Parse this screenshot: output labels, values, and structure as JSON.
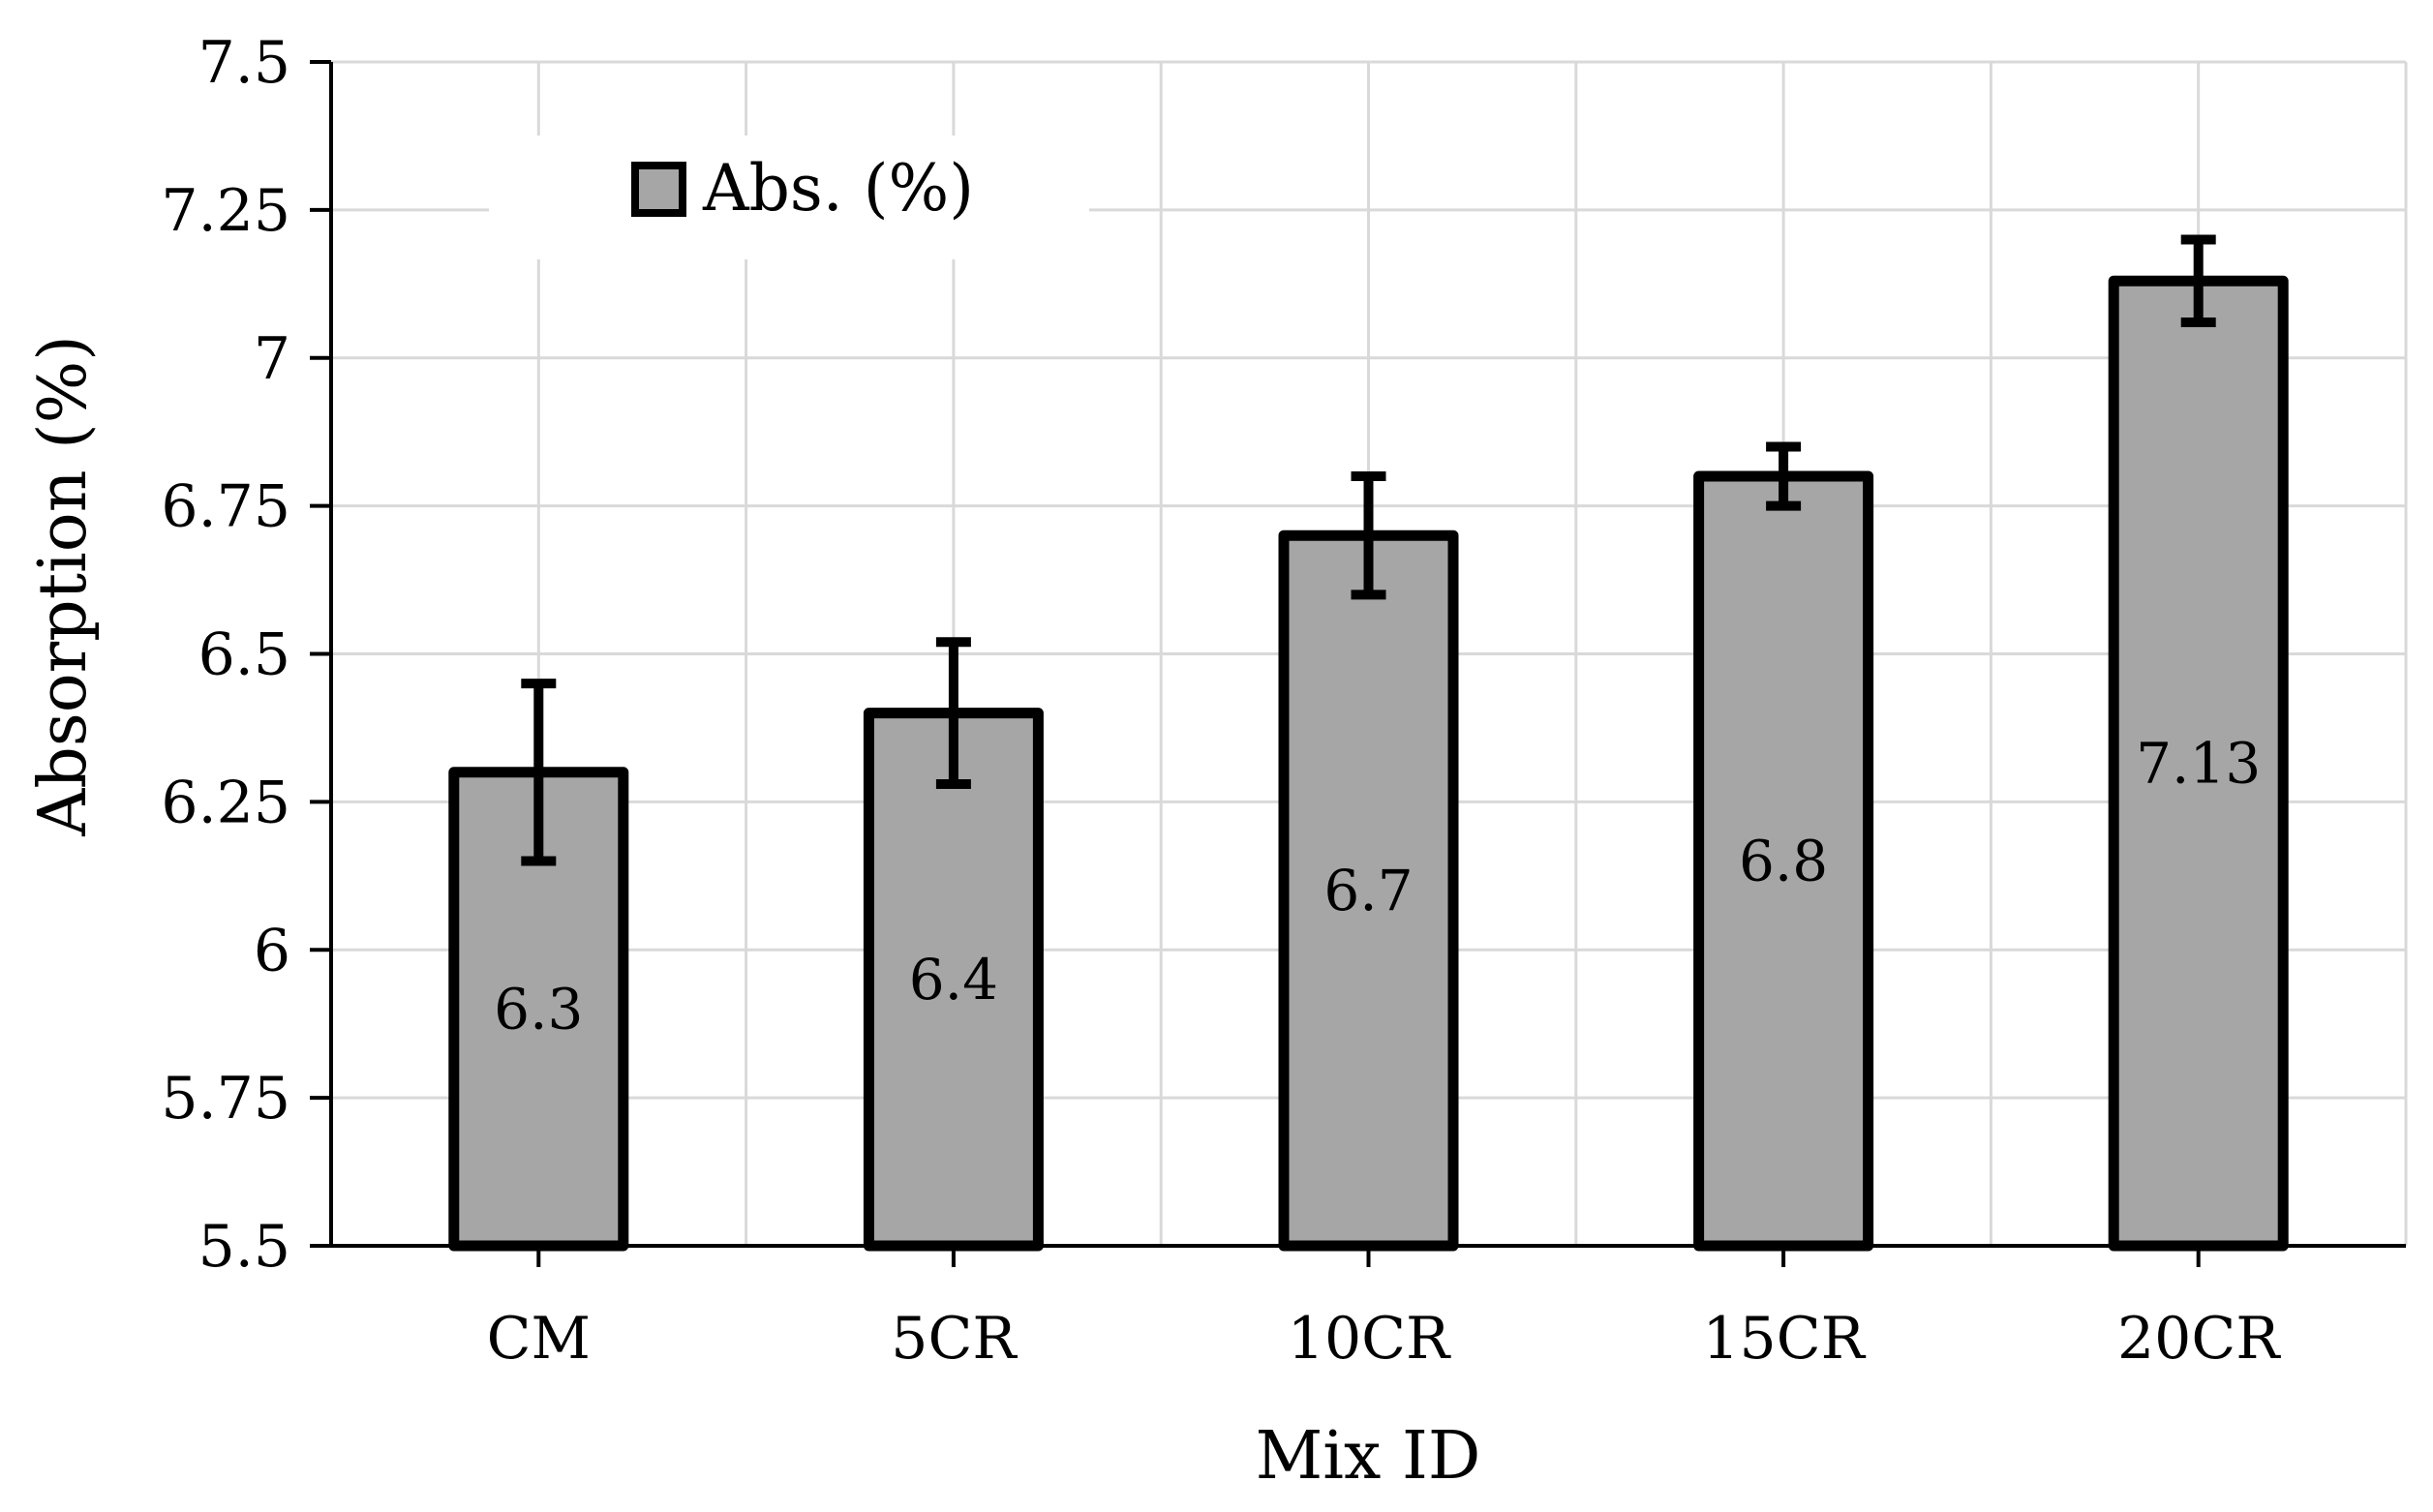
{
  "chart_data": {
    "type": "bar",
    "title": "",
    "xlabel": "Mix ID",
    "ylabel": "Absorption (%)",
    "categories": [
      "CM",
      "5CR",
      "10CR",
      "15CR",
      "20CR"
    ],
    "series": [
      {
        "name": "Abs. (%)",
        "values": [
          6.3,
          6.4,
          6.7,
          6.8,
          7.13
        ],
        "error": [
          0.15,
          0.12,
          0.1,
          0.05,
          0.07
        ],
        "labels": [
          "6.3",
          "6.4",
          "6.7",
          "6.8",
          "7.13"
        ]
      }
    ],
    "ylim": [
      5.5,
      7.5
    ],
    "yticks": [
      5.5,
      5.75,
      6,
      6.25,
      6.5,
      6.75,
      7,
      7.25,
      7.5
    ],
    "ytick_labels": [
      "5.5",
      "5.75",
      "6",
      "6.25",
      "6.5",
      "6.75",
      "7",
      "7.25",
      "7.5"
    ],
    "grid": true,
    "legend_position": "top-left",
    "colors": {
      "bar_fill": "#a6a6a6",
      "bar_edge": "#000000",
      "grid": "#d9d9d9",
      "axis": "#000000"
    }
  }
}
